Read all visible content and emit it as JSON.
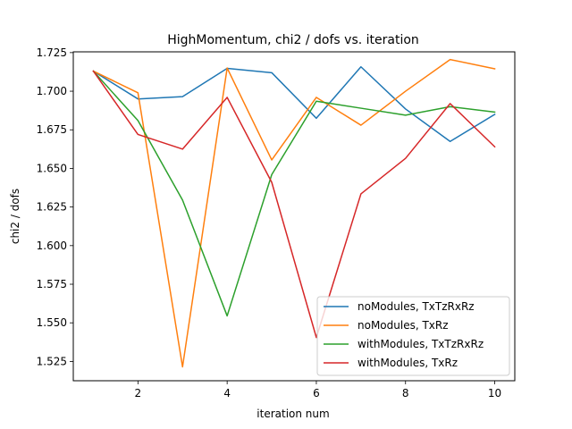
{
  "chart_data": {
    "type": "line",
    "title": "HighMomentum, chi2 / dofs vs. iteration",
    "xlabel": "iteration num",
    "ylabel": "chi2 / dofs",
    "xlim": [
      0.55,
      10.45
    ],
    "ylim": [
      1.5125,
      1.7255
    ],
    "x_ticks": [
      2,
      4,
      6,
      8,
      10
    ],
    "y_ticks": [
      1.525,
      1.55,
      1.575,
      1.6,
      1.625,
      1.65,
      1.675,
      1.7,
      1.725
    ],
    "x_tick_labels": [
      "2",
      "4",
      "6",
      "8",
      "10"
    ],
    "y_tick_labels": [
      "1.525",
      "1.550",
      "1.575",
      "1.600",
      "1.625",
      "1.650",
      "1.675",
      "1.700",
      "1.725"
    ],
    "grid": false,
    "legend_position": "lower-right",
    "x": [
      1,
      2,
      3,
      4,
      5,
      6,
      7,
      8,
      9,
      10
    ],
    "series": [
      {
        "name": "noModules, TxTzRxRz",
        "color": "#1f77b4",
        "values": [
          1.713,
          1.695,
          1.6965,
          1.7148,
          1.712,
          1.6825,
          1.7158,
          1.6885,
          1.6675,
          1.685
        ]
      },
      {
        "name": "noModules, TxRz",
        "color": "#ff7f0e",
        "values": [
          1.713,
          1.699,
          1.5215,
          1.715,
          1.6555,
          1.696,
          1.678,
          1.7,
          1.7205,
          1.7145
        ]
      },
      {
        "name": "withModules, TxTzRxRz",
        "color": "#2ca02c",
        "values": [
          1.713,
          1.681,
          1.6295,
          1.5545,
          1.646,
          1.6935,
          1.689,
          1.6845,
          1.69,
          1.6865
        ]
      },
      {
        "name": "withModules, TxRz",
        "color": "#d62728",
        "values": [
          1.713,
          1.672,
          1.6625,
          1.696,
          1.641,
          1.5405,
          1.6335,
          1.6565,
          1.692,
          1.664
        ]
      }
    ]
  }
}
